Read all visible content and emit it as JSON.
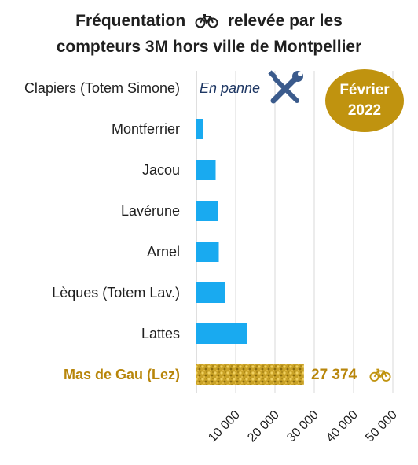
{
  "title_line1": "Fréquentation",
  "title_line1b": "relevée par les",
  "title_line2": "compteurs 3M hors ville de Montpellier",
  "badge": {
    "month": "Février",
    "year": "2022"
  },
  "panne_label": "En panne",
  "highlight_value_label": "27 374",
  "colors": {
    "bar": "#19aaf0",
    "gold": "#c0930f",
    "highlight_text": "#b8860b",
    "grid": "#d9d9d9",
    "panne_text": "#1f3864"
  },
  "chart_data": {
    "type": "bar",
    "orientation": "horizontal",
    "categories": [
      "Clapiers (Totem Simone)",
      "Montferrier",
      "Jacou",
      "Lavérune",
      "Arnel",
      "Lèques (Totem Lav.)",
      "Lattes",
      "Mas de Gau (Lez)"
    ],
    "values": [
      null,
      1800,
      4900,
      5400,
      5700,
      7200,
      13000,
      27374
    ],
    "highlight_category": "Mas de Gau (Lez)",
    "xlim": [
      0,
      50000
    ],
    "ticks": [
      10000,
      20000,
      30000,
      40000,
      50000
    ],
    "tick_labels": [
      "10 000",
      "20 000",
      "30 000",
      "40 000",
      "50 000"
    ],
    "grid": true
  }
}
